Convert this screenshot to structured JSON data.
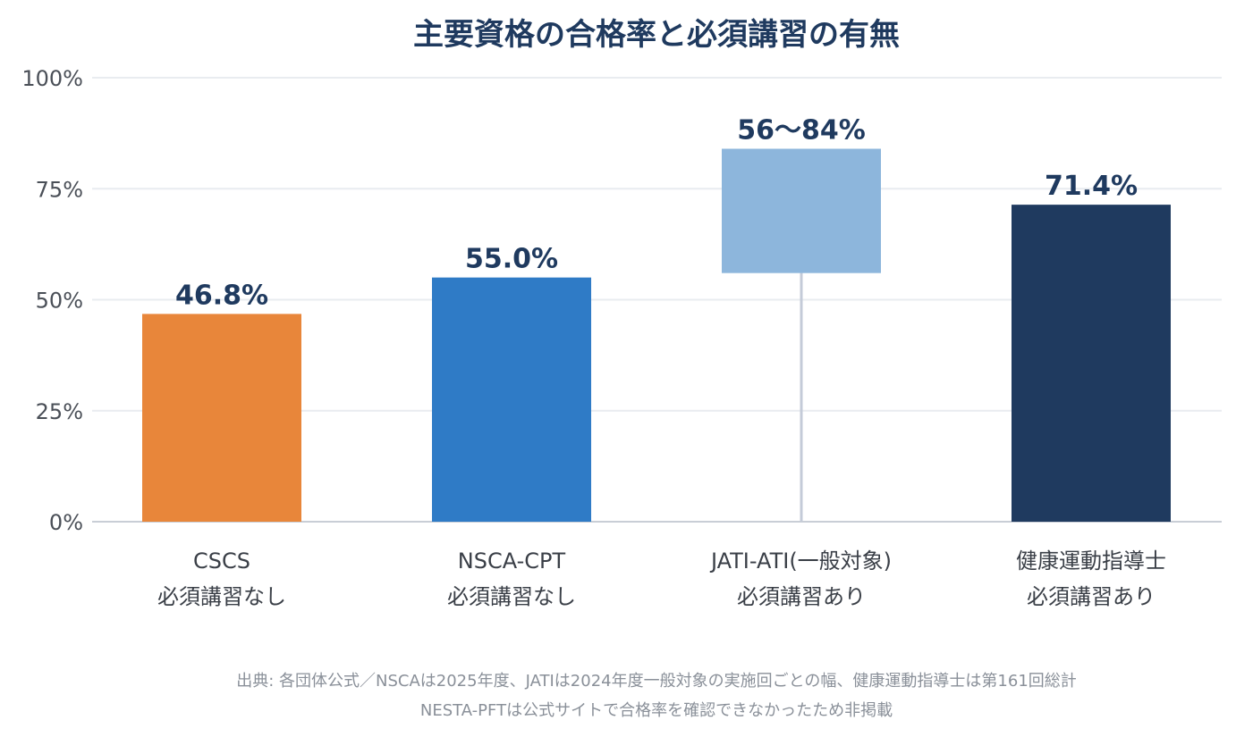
{
  "chart_data": {
    "type": "bar",
    "title": "主要資格の合格率と必須講習の有無",
    "xlabel": "",
    "ylabel": "",
    "ylim": [
      0,
      100
    ],
    "y_ticks": [
      "0%",
      "25%",
      "50%",
      "75%",
      "100%"
    ],
    "y_tick_values": [
      0,
      25,
      50,
      75,
      100
    ],
    "grid": true,
    "categories": [
      {
        "name": "CSCS",
        "sub": "必須講習なし"
      },
      {
        "name": "NSCA-CPT",
        "sub": "必須講習なし"
      },
      {
        "name": "JATI-ATI(一般対象)",
        "sub": "必須講習あり"
      },
      {
        "name": "健康運動指導士",
        "sub": "必須講習あり"
      }
    ],
    "bars": [
      {
        "value": 46.8,
        "low": 0,
        "high": 46.8,
        "label": "46.8%",
        "color": "#e8863a"
      },
      {
        "value": 55.0,
        "low": 0,
        "high": 55.0,
        "label": "55.0%",
        "color": "#2f7bc6"
      },
      {
        "value": null,
        "low": 56,
        "high": 84,
        "label": "56〜84%",
        "color": "#8db6dc"
      },
      {
        "value": 71.4,
        "low": 0,
        "high": 71.4,
        "label": "71.4%",
        "color": "#1f3a5f"
      }
    ],
    "source_lines": [
      "出典: 各団体公式／NSCAは2025年度、JATIは2024年度一般対象の実施回ごとの幅、健康運動指導士は第161回総計",
      "NESTA-PFTは公式サイトで合格率を確認できなかったため非掲載"
    ]
  }
}
